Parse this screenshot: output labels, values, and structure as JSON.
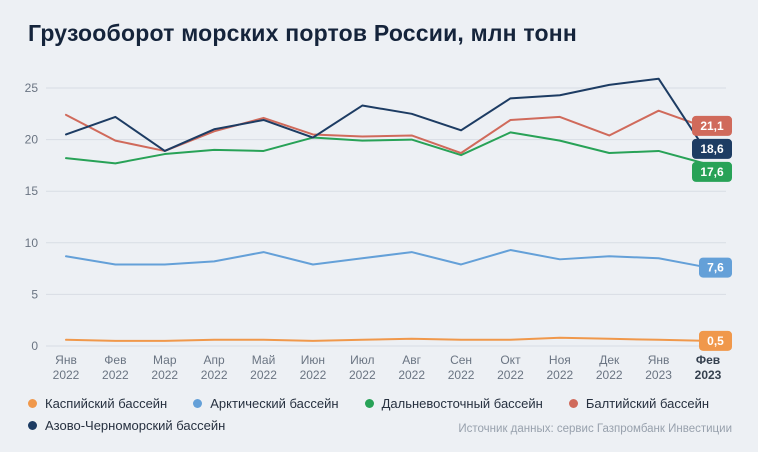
{
  "title": "Грузооборот морских портов России, млн тонн",
  "source": "Источник данных: сервис Газпромбанк Инвестиции",
  "chart_data": {
    "type": "line",
    "title": "Грузооборот морских портов России, млн тонн",
    "ylabel": "млн тонн",
    "y_ticks": [
      0,
      5,
      10,
      15,
      20,
      25
    ],
    "ylim": [
      0,
      26
    ],
    "grid": true,
    "legend_position": "bottom",
    "x_labels": [
      [
        "Янв",
        "2022"
      ],
      [
        "Фев",
        "2022"
      ],
      [
        "Мар",
        "2022"
      ],
      [
        "Апр",
        "2022"
      ],
      [
        "Май",
        "2022"
      ],
      [
        "Июн",
        "2022"
      ],
      [
        "Июл",
        "2022"
      ],
      [
        "Авг",
        "2022"
      ],
      [
        "Сен",
        "2022"
      ],
      [
        "Окт",
        "2022"
      ],
      [
        "Ноя",
        "2022"
      ],
      [
        "Дек",
        "2022"
      ],
      [
        "Янв",
        "2023"
      ],
      [
        "Фев",
        "2023"
      ]
    ],
    "series": [
      {
        "name": "Каспийский бассейн",
        "color": "#f0984b",
        "end_label": "0,5",
        "values": [
          0.6,
          0.5,
          0.5,
          0.6,
          0.6,
          0.5,
          0.6,
          0.7,
          0.6,
          0.6,
          0.8,
          0.7,
          0.6,
          0.5
        ]
      },
      {
        "name": "Арктический бассейн",
        "color": "#64a0d8",
        "end_label": "7,6",
        "values": [
          8.7,
          7.9,
          7.9,
          8.2,
          9.1,
          7.9,
          8.5,
          9.1,
          7.9,
          9.3,
          8.4,
          8.7,
          8.5,
          7.6
        ]
      },
      {
        "name": "Дальневосточный бассейн",
        "color": "#28a257",
        "end_label": "17,6",
        "values": [
          18.2,
          17.7,
          18.6,
          19.0,
          18.9,
          20.2,
          19.9,
          20.0,
          18.5,
          20.7,
          19.9,
          18.7,
          18.9,
          17.6
        ]
      },
      {
        "name": "Балтийский бассейн",
        "color": "#d06a5b",
        "end_label": "21,1",
        "values": [
          22.4,
          19.9,
          18.9,
          20.8,
          22.1,
          20.5,
          20.3,
          20.4,
          18.7,
          21.9,
          22.2,
          20.4,
          22.8,
          21.1
        ]
      },
      {
        "name": "Азово-Черноморский бассейн",
        "color": "#1d3c63",
        "end_label": "18,6",
        "values": [
          20.5,
          22.2,
          18.9,
          21.0,
          21.9,
          20.2,
          23.3,
          22.5,
          20.9,
          24.0,
          24.3,
          25.3,
          25.9,
          18.6
        ]
      }
    ]
  }
}
